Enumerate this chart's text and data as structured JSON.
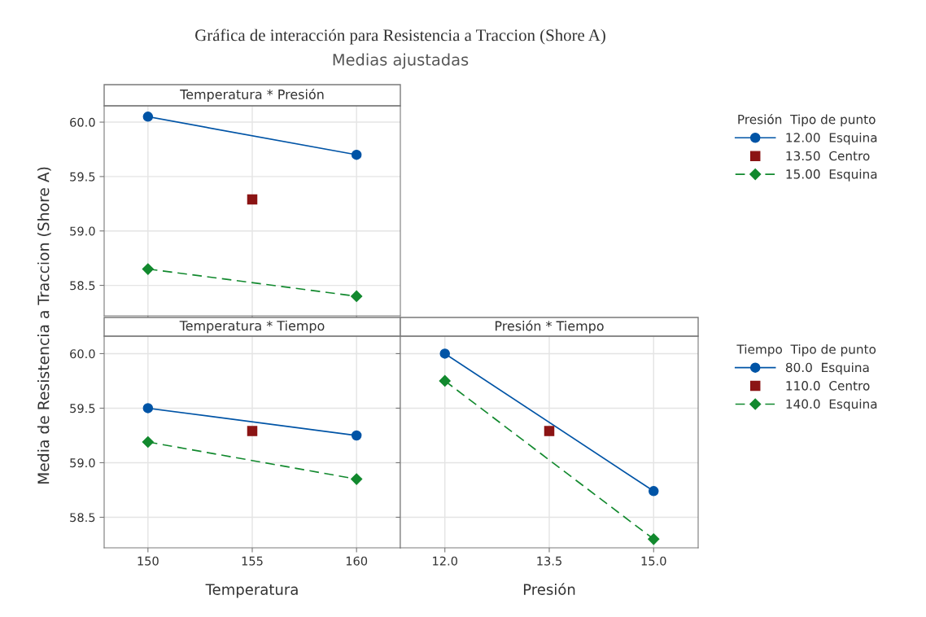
{
  "chart_data": [
    {
      "type": "line",
      "title": "Temperatura * Presión",
      "ylabel": "Media de Resistencia a Traccion (Shore A)",
      "annotations": [
        "Gráfica de interacción para Resistencia a Traccion (Shore A)",
        "Medias ajustadas"
      ],
      "legend_title": "Presión  Tipo de punto",
      "legend": "right",
      "grid": true,
      "tick_labels": "y",
      "xlim": [
        147.9,
        162.1
      ],
      "xticks": [
        {
          "value": 150,
          "label": null
        },
        {
          "value": 155,
          "label": null
        },
        {
          "value": 160,
          "label": null
        }
      ],
      "ylim": [
        58.22,
        60.15
      ],
      "yticks": [
        {
          "value": 58.5,
          "label": "58.5"
        },
        {
          "value": 59.0,
          "label": "59.0"
        },
        {
          "value": 59.5,
          "label": "59.5"
        },
        {
          "value": 60.0,
          "label": "60.0"
        }
      ],
      "series": [
        {
          "name": "12.00  Esquina",
          "type": "line",
          "marker": "circle",
          "line_style": "solid",
          "color": "#0054a6",
          "x": [
            150,
            160
          ],
          "values": [
            60.05,
            59.7
          ]
        },
        {
          "name": "13.50  Centro",
          "type": "scatter",
          "marker": "square",
          "color": "#8b1414",
          "x": [
            155
          ],
          "values": [
            59.29
          ]
        },
        {
          "name": "15.00  Esquina",
          "type": "line",
          "marker": "diamond",
          "line_style": "dashed",
          "color": "#12892e",
          "x": [
            150,
            160
          ],
          "values": [
            58.65,
            58.4
          ]
        }
      ]
    },
    {
      "type": "line",
      "title": "Temperatura * Tiempo",
      "xlabel": "Temperatura",
      "grid": true,
      "xlim": [
        147.9,
        162.1
      ],
      "xticks": [
        150,
        155,
        160
      ],
      "ylim": [
        58.22,
        60.16
      ],
      "yticks": [
        {
          "value": 58.5,
          "label": "58.5"
        },
        {
          "value": 59.0,
          "label": "59.0"
        },
        {
          "value": 59.5,
          "label": "59.5"
        },
        {
          "value": 60.0,
          "label": "60.0"
        }
      ],
      "series": [
        {
          "type": "line",
          "marker": "circle",
          "line_style": "solid",
          "color": "#0054a6",
          "x": [
            150,
            160
          ],
          "values": [
            59.5,
            59.25
          ]
        },
        {
          "type": "scatter",
          "marker": "square",
          "color": "#8b1414",
          "x": [
            155
          ],
          "values": [
            59.29
          ]
        },
        {
          "type": "line",
          "marker": "diamond",
          "line_style": "dashed",
          "color": "#12892e",
          "x": [
            150,
            160
          ],
          "values": [
            59.19,
            58.85
          ]
        }
      ]
    },
    {
      "type": "line",
      "title": "Presión * Tiempo",
      "xlabel": "Presión",
      "legend_title": "Tiempo  Tipo de punto",
      "legend": "right",
      "grid": true,
      "tick_labels": "x",
      "xlim": [
        11.36,
        15.64
      ],
      "xticks": [
        {
          "value": 12.0,
          "label": "12.0"
        },
        {
          "value": 13.5,
          "label": "13.5"
        },
        {
          "value": 15.0,
          "label": "15.0"
        }
      ],
      "ylim": [
        58.22,
        60.16
      ],
      "yticks": [
        {
          "value": 58.5,
          "label": null
        },
        {
          "value": 59.0,
          "label": null
        },
        {
          "value": 59.5,
          "label": null
        },
        {
          "value": 60.0,
          "label": null
        }
      ],
      "series": [
        {
          "name": "80.0  Esquina",
          "type": "line",
          "marker": "circle",
          "line_style": "solid",
          "color": "#0054a6",
          "x": [
            12.0,
            15.0
          ],
          "values": [
            60.0,
            58.74
          ]
        },
        {
          "name": "110.0  Centro",
          "type": "scatter",
          "marker": "square",
          "color": "#8b1414",
          "x": [
            13.5
          ],
          "values": [
            59.29
          ]
        },
        {
          "name": "140.0  Esquina",
          "type": "line",
          "marker": "diamond",
          "line_style": "dashed",
          "color": "#12892e",
          "x": [
            12.0,
            15.0
          ],
          "values": [
            59.75,
            58.3
          ]
        }
      ]
    }
  ]
}
